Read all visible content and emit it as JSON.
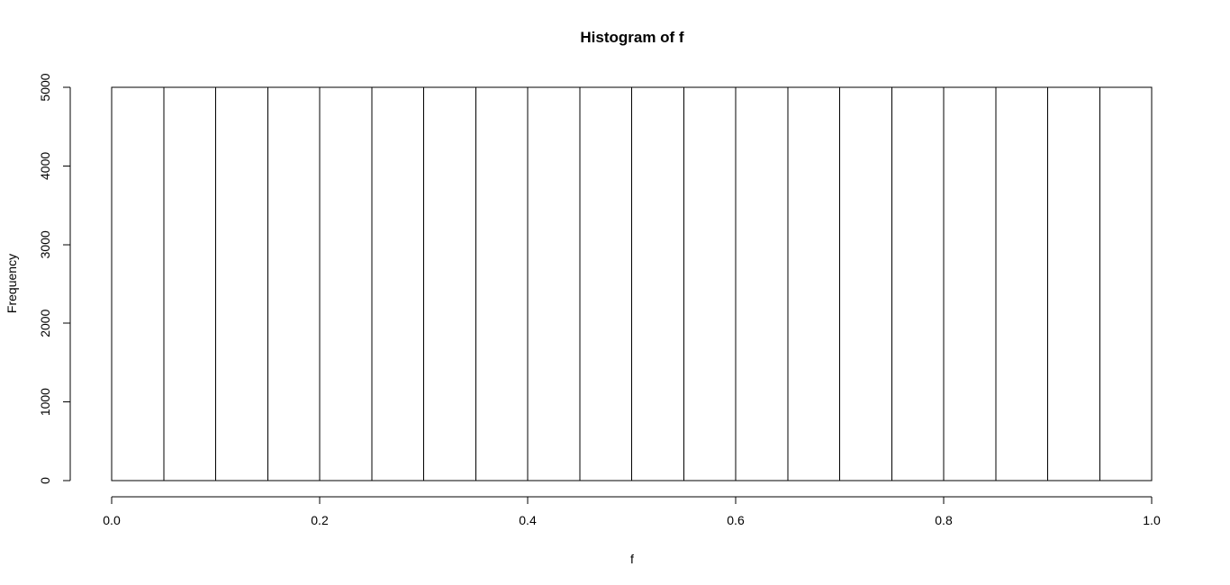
{
  "chart_data": {
    "type": "bar",
    "title": "Histogram of f",
    "xlabel": "f",
    "ylabel": "Frequency",
    "bins": [
      {
        "from": 0.0,
        "to": 0.05,
        "count": 5000
      },
      {
        "from": 0.05,
        "to": 0.1,
        "count": 5000
      },
      {
        "from": 0.1,
        "to": 0.15,
        "count": 5000
      },
      {
        "from": 0.15,
        "to": 0.2,
        "count": 5000
      },
      {
        "from": 0.2,
        "to": 0.25,
        "count": 5000
      },
      {
        "from": 0.25,
        "to": 0.3,
        "count": 5000
      },
      {
        "from": 0.3,
        "to": 0.35,
        "count": 5000
      },
      {
        "from": 0.35,
        "to": 0.4,
        "count": 5000
      },
      {
        "from": 0.4,
        "to": 0.45,
        "count": 5000
      },
      {
        "from": 0.45,
        "to": 0.5,
        "count": 5000
      },
      {
        "from": 0.5,
        "to": 0.55,
        "count": 5000
      },
      {
        "from": 0.55,
        "to": 0.6,
        "count": 5000
      },
      {
        "from": 0.6,
        "to": 0.65,
        "count": 5000
      },
      {
        "from": 0.65,
        "to": 0.7,
        "count": 5000
      },
      {
        "from": 0.7,
        "to": 0.75,
        "count": 5000
      },
      {
        "from": 0.75,
        "to": 0.8,
        "count": 5000
      },
      {
        "from": 0.8,
        "to": 0.85,
        "count": 5000
      },
      {
        "from": 0.85,
        "to": 0.9,
        "count": 5000
      },
      {
        "from": 0.9,
        "to": 0.95,
        "count": 5000
      },
      {
        "from": 0.95,
        "to": 1.0,
        "count": 5000
      }
    ],
    "xlim": [
      0,
      1
    ],
    "ylim": [
      0,
      5000
    ],
    "x_ticks": [
      0.0,
      0.2,
      0.4,
      0.6,
      0.8,
      1.0
    ],
    "x_tick_labels": [
      "0.0",
      "0.2",
      "0.4",
      "0.6",
      "0.8",
      "1.0"
    ],
    "y_ticks": [
      0,
      1000,
      2000,
      3000,
      4000,
      5000
    ],
    "y_tick_labels": [
      "0",
      "1000",
      "2000",
      "3000",
      "4000",
      "5000"
    ],
    "grid": false,
    "legend": "none",
    "colors": {
      "bar_fill": "#ffffff",
      "bar_stroke": "#000000",
      "axis": "#000000"
    }
  }
}
